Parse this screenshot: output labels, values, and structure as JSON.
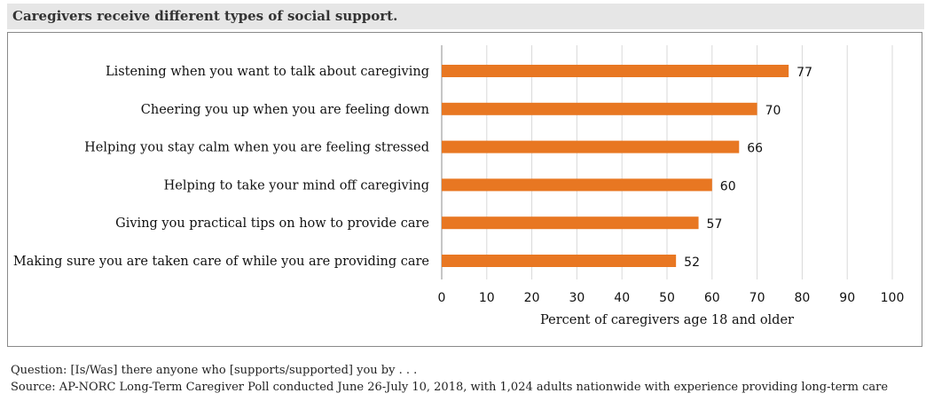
{
  "title": "Caregivers receive different types of social support.",
  "chart_data": {
    "type": "bar",
    "orientation": "horizontal",
    "categories": [
      "Listening when you want to talk about caregiving",
      "Cheering you up when you are feeling down",
      "Helping you stay calm when you are feeling stressed",
      "Helping to take your mind off caregiving",
      "Giving you practical tips on how to provide care",
      "Making sure you are taken care of while you are providing care"
    ],
    "values": [
      77,
      70,
      66,
      60,
      57,
      52
    ],
    "xlabel": "Percent of caregivers age 18 and older",
    "ylabel": "",
    "xlim": [
      0,
      100
    ],
    "xticks": [
      0,
      10,
      20,
      30,
      40,
      50,
      60,
      70,
      80,
      90,
      100
    ],
    "grid": "vertical",
    "bar_color": "#e87722",
    "grid_color": "#d9d9d9"
  },
  "notes": {
    "question": "Question: [Is/Was] there anyone who [supports/supported] you by . . .",
    "source": "Source: AP-NORC Long-Term Caregiver Poll conducted June 26-July 10, 2018, with 1,024 adults nationwide with experience providing long-term care"
  }
}
